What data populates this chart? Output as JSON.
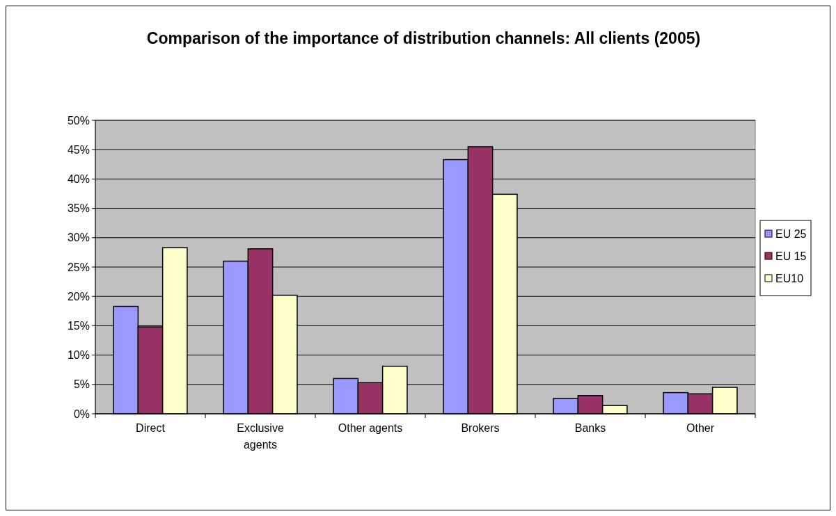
{
  "chart_data": {
    "type": "bar",
    "title": "Comparison of the importance of distribution channels: All clients (2005)",
    "categories": [
      "Direct",
      "Exclusive agents",
      "Other agents",
      "Brokers",
      "Banks",
      "Other"
    ],
    "series": [
      {
        "name": "EU 25",
        "color": "#9999ff",
        "values": [
          18.3,
          26.0,
          6.0,
          43.3,
          2.6,
          3.6
        ]
      },
      {
        "name": "EU 15",
        "color": "#993366",
        "values": [
          14.8,
          28.1,
          5.3,
          45.5,
          3.1,
          3.4
        ]
      },
      {
        "name": "EU10",
        "color": "#ffffcc",
        "values": [
          28.3,
          20.2,
          8.1,
          37.4,
          1.4,
          4.5
        ]
      }
    ],
    "ylim": [
      0,
      50
    ],
    "yticks": [
      {
        "value": 0,
        "label": "0%"
      },
      {
        "value": 5,
        "label": "5%"
      },
      {
        "value": 10,
        "label": "10%"
      },
      {
        "value": 15,
        "label": "15%"
      },
      {
        "value": 20,
        "label": "20%"
      },
      {
        "value": 25,
        "label": "25%"
      },
      {
        "value": 30,
        "label": "30%"
      },
      {
        "value": 35,
        "label": "35%"
      },
      {
        "value": 40,
        "label": "40%"
      },
      {
        "value": 45,
        "label": "45%"
      },
      {
        "value": 50,
        "label": "50%"
      }
    ],
    "grid": "y",
    "legend": "right"
  }
}
